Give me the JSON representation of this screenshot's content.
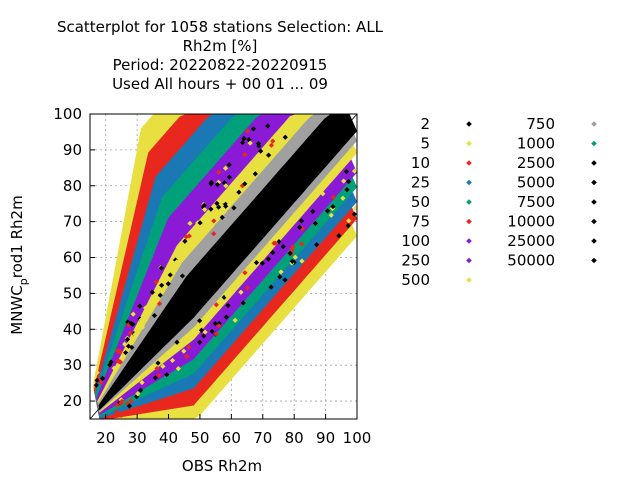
{
  "chart_data": {
    "type": "scatter",
    "title_lines": [
      "Scatterplot for 1058 stations Selection: ALL",
      "Rh2m [%]",
      "Period: 20220822-20220915",
      "Used  All hours  + 00 01 ... 09"
    ],
    "xlabel": "OBS Rh2m",
    "ylabel_main": "MNWC",
    "ylabel_sub": "p",
    "ylabel_rest": "rod1 Rh2m",
    "xlim": [
      15,
      100
    ],
    "ylim": [
      15,
      100
    ],
    "xticks": [
      20,
      30,
      40,
      50,
      60,
      70,
      80,
      90,
      100
    ],
    "yticks": [
      20,
      30,
      40,
      50,
      60,
      70,
      80,
      90,
      100
    ],
    "grid": true,
    "legend_placement": "right",
    "legend": [
      {
        "label": "2",
        "color": "#000000"
      },
      {
        "label": "5",
        "color": "#e8e040"
      },
      {
        "label": "10",
        "color": "#e8281e"
      },
      {
        "label": "25",
        "color": "#1a78b4"
      },
      {
        "label": "50",
        "color": "#00a07a"
      },
      {
        "label": "75",
        "color": "#e8281e"
      },
      {
        "label": "100",
        "color": "#8a1ad6"
      },
      {
        "label": "250",
        "color": "#8a1ad6"
      },
      {
        "label": "500",
        "color": "#e8e040"
      },
      {
        "label": "750",
        "color": "#a0a0a0"
      },
      {
        "label": "1000",
        "color": "#00a07a"
      },
      {
        "label": "2500",
        "color": "#000000"
      },
      {
        "label": "5000",
        "color": "#000000"
      },
      {
        "label": "7500",
        "color": "#000000"
      },
      {
        "label": "10000",
        "color": "#000000"
      },
      {
        "label": "25000",
        "color": "#000000"
      },
      {
        "label": "50000",
        "color": "#000000"
      }
    ]
  }
}
